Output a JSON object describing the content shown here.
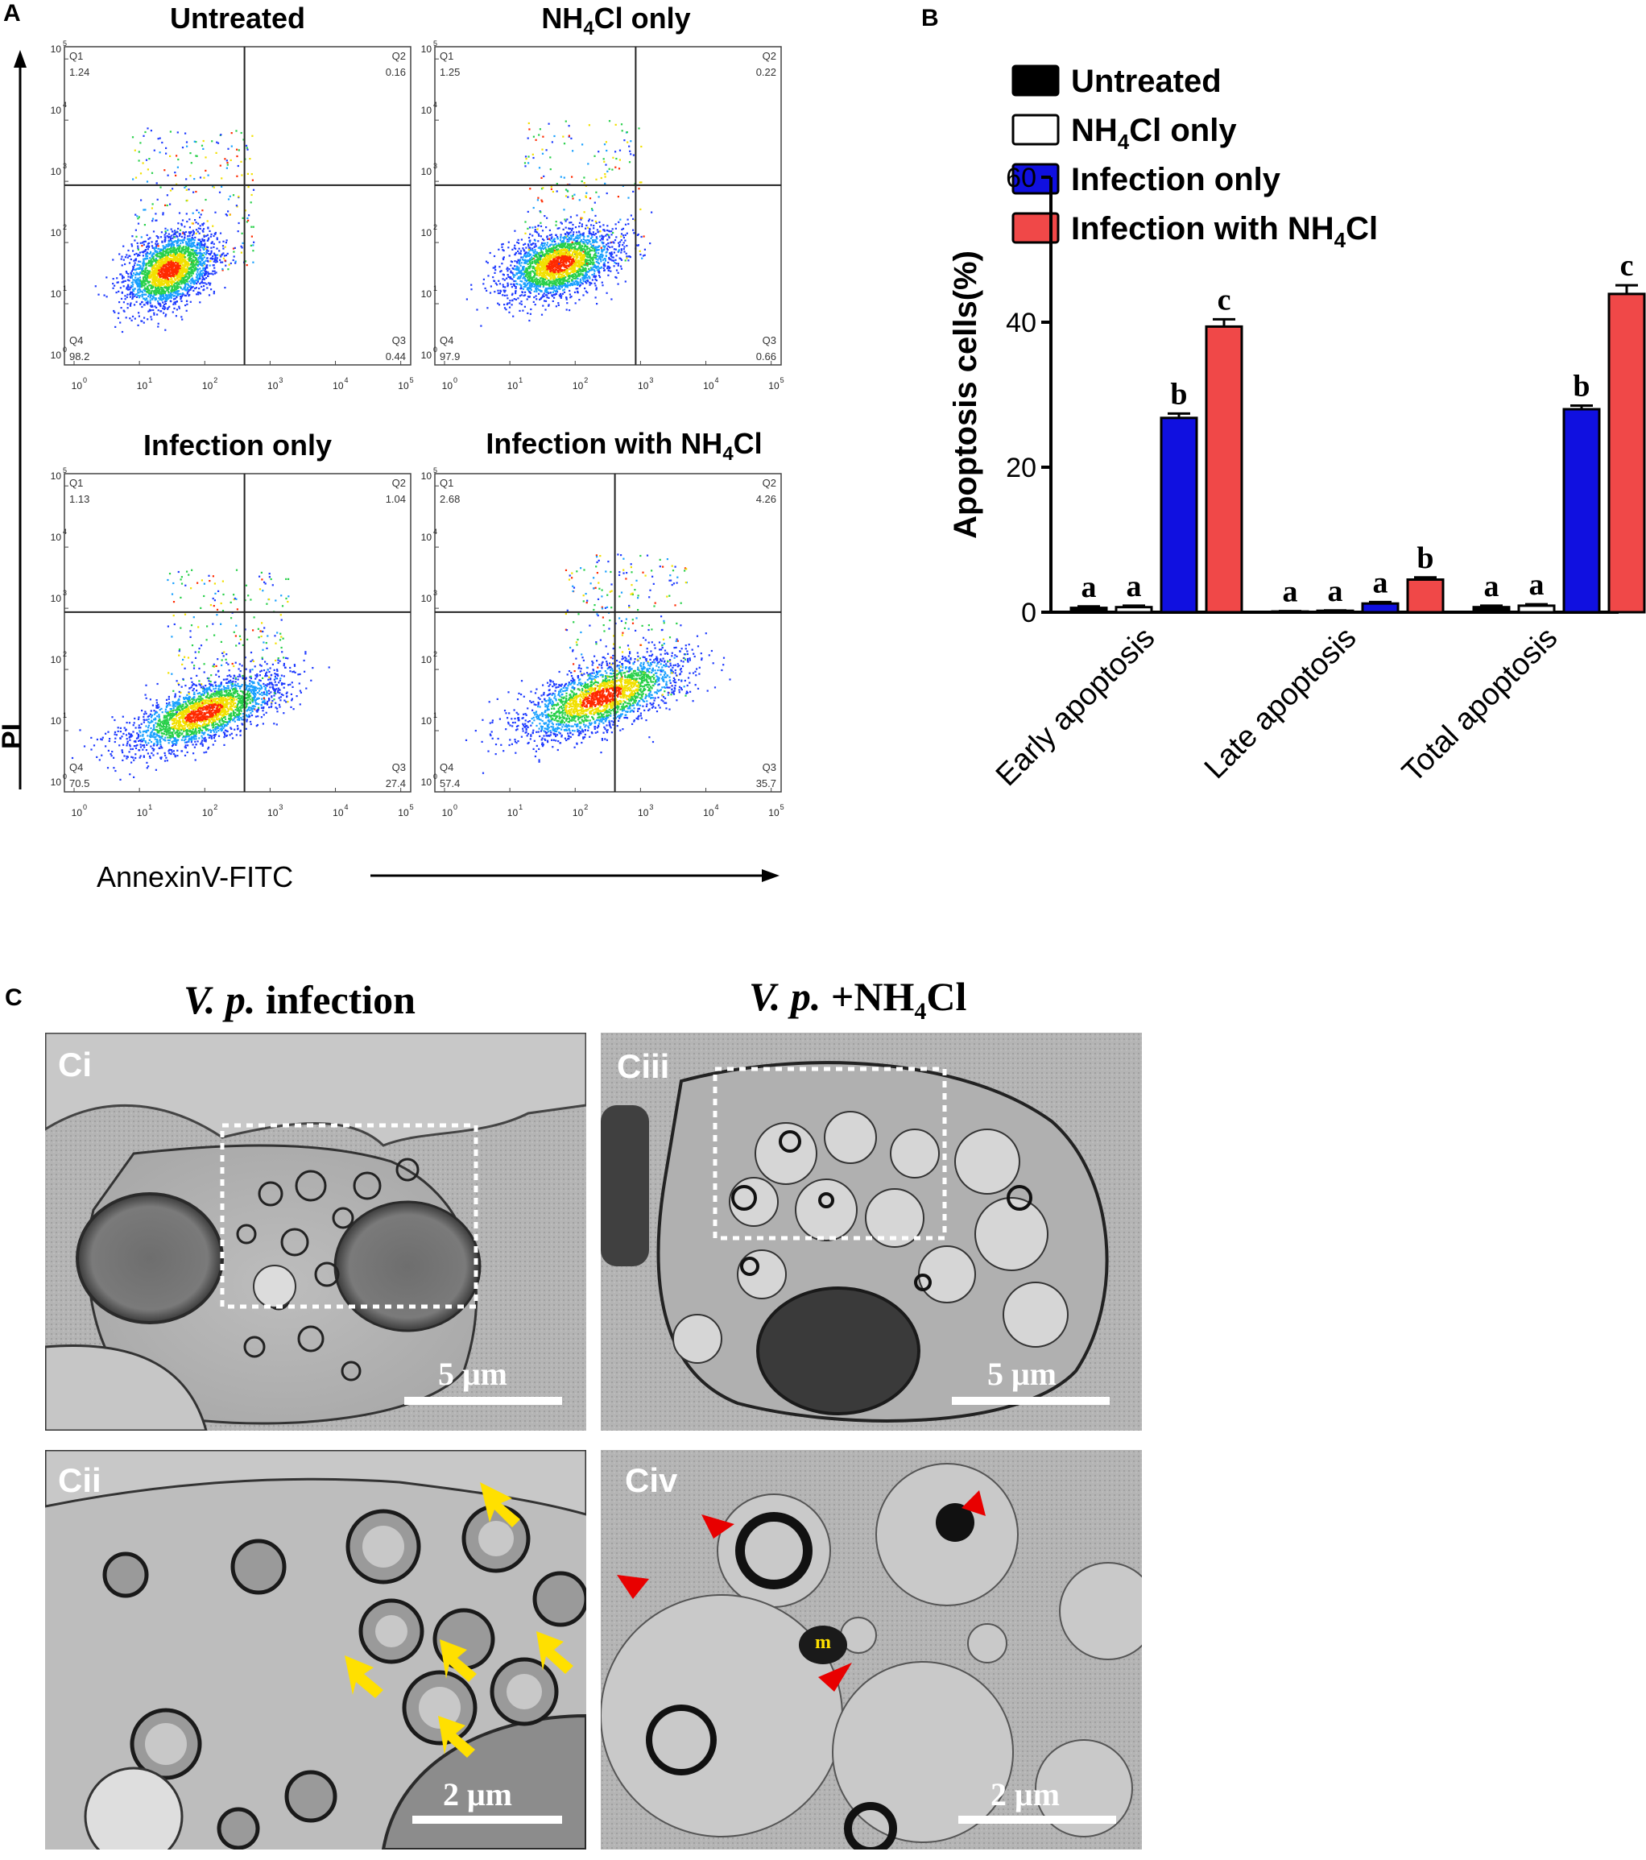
{
  "panel_labels": {
    "A": "A",
    "B": "B",
    "C": "C"
  },
  "panelA": {
    "y_axis_label": "PI",
    "x_axis_label": "AnnexinV-FITC",
    "tick_labels": [
      "10",
      "0",
      "10",
      "1",
      "10",
      "2",
      "10",
      "3",
      "10",
      "4",
      "10",
      "5"
    ],
    "plots": [
      {
        "title_main": "Untreated",
        "title_sub": "",
        "title_tail": "",
        "q1": "Q1",
        "q1v": "1.24",
        "q2": "Q2",
        "q2v": "0.16",
        "q3": "Q3",
        "q3v": "0.44",
        "q4": "Q4",
        "q4v": "98.2"
      },
      {
        "title_main": "NH",
        "title_sub": "4",
        "title_tail": "Cl only",
        "q1": "Q1",
        "q1v": "1.25",
        "q2": "Q2",
        "q2v": "0.22",
        "q3": "Q3",
        "q3v": "0.66",
        "q4": "Q4",
        "q4v": "97.9"
      },
      {
        "title_main": "Infection only",
        "title_sub": "",
        "title_tail": "",
        "q1": "Q1",
        "q1v": "1.13",
        "q2": "Q2",
        "q2v": "1.04",
        "q3": "Q3",
        "q3v": "27.4",
        "q4": "Q4",
        "q4v": "70.5"
      },
      {
        "title_main": "Infection with NH",
        "title_sub": "4",
        "title_tail": "Cl",
        "q1": "Q1",
        "q1v": "2.68",
        "q2": "Q2",
        "q2v": "4.26",
        "q3": "Q3",
        "q3v": "35.7",
        "q4": "Q4",
        "q4v": "57.4"
      }
    ]
  },
  "chart_data": {
    "type": "bar",
    "ylabel": "Apoptosis cells(%)",
    "ylim": [
      0,
      60
    ],
    "yticks": [
      0,
      20,
      40,
      60
    ],
    "categories": [
      "Early apoptosis",
      "Late apoptosis",
      "Total apoptosis"
    ],
    "series": [
      {
        "name": "Untreated",
        "name_main": "Untreated",
        "name_sub": "",
        "name_tail": "",
        "color": "#000000",
        "values": [
          0.6,
          0.1,
          0.7
        ],
        "errors": [
          0.2,
          0.05,
          0.2
        ],
        "letters": [
          "a",
          "a",
          "a"
        ]
      },
      {
        "name": "NH4Cl only",
        "name_main": "NH",
        "name_sub": "4",
        "name_tail": "Cl only",
        "color": "#ffffff",
        "values": [
          0.7,
          0.2,
          0.9
        ],
        "errors": [
          0.2,
          0.05,
          0.2
        ],
        "letters": [
          "a",
          "a",
          "a"
        ]
      },
      {
        "name": "Infection only",
        "name_main": "Infection only",
        "name_sub": "",
        "name_tail": "",
        "color": "#1010e0",
        "values": [
          26.8,
          1.2,
          28.0
        ],
        "errors": [
          0.6,
          0.2,
          0.5
        ],
        "letters": [
          "b",
          "a",
          "b"
        ]
      },
      {
        "name": "Infection with NH4Cl",
        "name_main": "Infection with NH",
        "name_sub": "4",
        "name_tail": "Cl",
        "color": "#f04848",
        "values": [
          39.4,
          4.5,
          43.9
        ],
        "errors": [
          1.0,
          0.3,
          1.2
        ],
        "letters": [
          "c",
          "b",
          "c"
        ]
      }
    ],
    "legend_position": "top"
  },
  "panelC": {
    "title_left_italic": "V. p.",
    "title_left_rest": " infection",
    "title_right_italic": "V. p.",
    "title_right_plus": " +NH",
    "title_right_sub": "4",
    "title_right_tail": "Cl",
    "images": [
      {
        "label": "Ci",
        "scale": "5 μm"
      },
      {
        "label": "Ciii",
        "scale": "5 μm"
      },
      {
        "label": "Cii",
        "scale": "2 μm"
      },
      {
        "label": "Civ",
        "scale": "2 μm",
        "marker": "m"
      }
    ]
  }
}
